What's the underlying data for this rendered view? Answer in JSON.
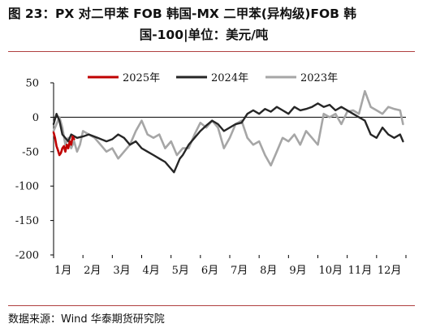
{
  "title_line1": "图 23：PX 对二甲苯 FOB 韩国-MX 二甲苯(异构级)FOB 韩",
  "title_line2": "国-100|单位：美元/吨",
  "source": "数据来源：Wind 华泰期货研究院",
  "colors": {
    "s2025": "#c00000",
    "s2024": "#262626",
    "s2023": "#a6a6a6",
    "rule": "#b04040"
  },
  "chart_data": {
    "type": "line",
    "ylim": [
      -200,
      50
    ],
    "yticks": [
      50,
      0,
      -50,
      -100,
      -150,
      -200
    ],
    "xlim": [
      1,
      13
    ],
    "xticks": [
      {
        "v": 1,
        "label": "1月"
      },
      {
        "v": 2,
        "label": "2月"
      },
      {
        "v": 3,
        "label": "3月"
      },
      {
        "v": 4,
        "label": "4月"
      },
      {
        "v": 5,
        "label": "5月"
      },
      {
        "v": 6,
        "label": "6月"
      },
      {
        "v": 7,
        "label": "7月"
      },
      {
        "v": 8,
        "label": "8月"
      },
      {
        "v": 9,
        "label": "9月"
      },
      {
        "v": 10,
        "label": "10月"
      },
      {
        "v": 11,
        "label": "11月"
      },
      {
        "v": 12,
        "label": "12月"
      }
    ],
    "legend_position": "top",
    "series": [
      {
        "name": "2025年",
        "color": "#c00000",
        "width": 2.6,
        "x": [
          1.0,
          1.05,
          1.1,
          1.15,
          1.2,
          1.25,
          1.3,
          1.35,
          1.4,
          1.45,
          1.5,
          1.55,
          1.6,
          1.65,
          1.7
        ],
        "y": [
          -22,
          -30,
          -42,
          -48,
          -55,
          -52,
          -45,
          -42,
          -50,
          -40,
          -45,
          -35,
          -40,
          -28,
          -32
        ]
      },
      {
        "name": "2024年",
        "color": "#262626",
        "width": 2.4,
        "x": [
          1.0,
          1.1,
          1.2,
          1.3,
          1.5,
          1.6,
          1.8,
          2.0,
          2.2,
          2.5,
          2.8,
          3.0,
          3.2,
          3.4,
          3.6,
          3.8,
          4.0,
          4.2,
          4.4,
          4.6,
          4.8,
          5.0,
          5.1,
          5.2,
          5.3,
          5.4,
          5.6,
          5.8,
          6.0,
          6.2,
          6.4,
          6.6,
          6.8,
          7.0,
          7.2,
          7.4,
          7.6,
          7.8,
          8.0,
          8.2,
          8.4,
          8.6,
          8.8,
          9.0,
          9.2,
          9.4,
          9.6,
          9.8,
          10.0,
          10.2,
          10.4,
          10.6,
          10.8,
          11.0,
          11.2,
          11.4,
          11.6,
          11.8,
          12.0,
          12.2,
          12.4,
          12.6,
          12.8,
          12.9
        ],
        "y": [
          -10,
          5,
          -5,
          -25,
          -35,
          -25,
          -30,
          -28,
          -25,
          -30,
          -35,
          -32,
          -25,
          -30,
          -40,
          -35,
          -45,
          -50,
          -55,
          -60,
          -65,
          -75,
          -80,
          -70,
          -60,
          -55,
          -40,
          -30,
          -20,
          -12,
          -5,
          -10,
          -20,
          -15,
          -10,
          -8,
          5,
          10,
          5,
          12,
          8,
          15,
          10,
          5,
          15,
          10,
          12,
          15,
          20,
          15,
          18,
          10,
          15,
          10,
          5,
          0,
          -5,
          -25,
          -30,
          -15,
          -25,
          -30,
          -25,
          -35
        ]
      },
      {
        "name": "2023年",
        "color": "#a6a6a6",
        "width": 2.6,
        "x": [
          1.0,
          1.1,
          1.2,
          1.3,
          1.4,
          1.5,
          1.6,
          1.7,
          1.8,
          1.9,
          2.0,
          2.2,
          2.4,
          2.6,
          2.8,
          3.0,
          3.2,
          3.4,
          3.6,
          3.8,
          4.0,
          4.2,
          4.4,
          4.6,
          4.8,
          5.0,
          5.2,
          5.4,
          5.6,
          5.8,
          6.0,
          6.2,
          6.4,
          6.6,
          6.8,
          7.0,
          7.2,
          7.4,
          7.6,
          7.8,
          8.0,
          8.2,
          8.4,
          8.6,
          8.8,
          9.0,
          9.2,
          9.4,
          9.6,
          9.8,
          10.0,
          10.2,
          10.4,
          10.6,
          10.8,
          11.0,
          11.2,
          11.4,
          11.6,
          11.8,
          12.0,
          12.2,
          12.4,
          12.6,
          12.8,
          12.9
        ],
        "y": [
          -20,
          -10,
          0,
          -15,
          -40,
          -30,
          -45,
          -35,
          -50,
          -40,
          -20,
          -25,
          -30,
          -40,
          -50,
          -45,
          -60,
          -50,
          -40,
          -20,
          -5,
          -25,
          -30,
          -25,
          -45,
          -35,
          -55,
          -45,
          -45,
          -25,
          -8,
          -15,
          -5,
          -15,
          -45,
          -30,
          -10,
          -5,
          -30,
          -40,
          -35,
          -55,
          -70,
          -50,
          -30,
          -35,
          -25,
          -40,
          -20,
          -30,
          -40,
          5,
          0,
          5,
          -10,
          8,
          10,
          5,
          38,
          15,
          10,
          5,
          15,
          12,
          10,
          -10
        ]
      }
    ]
  }
}
